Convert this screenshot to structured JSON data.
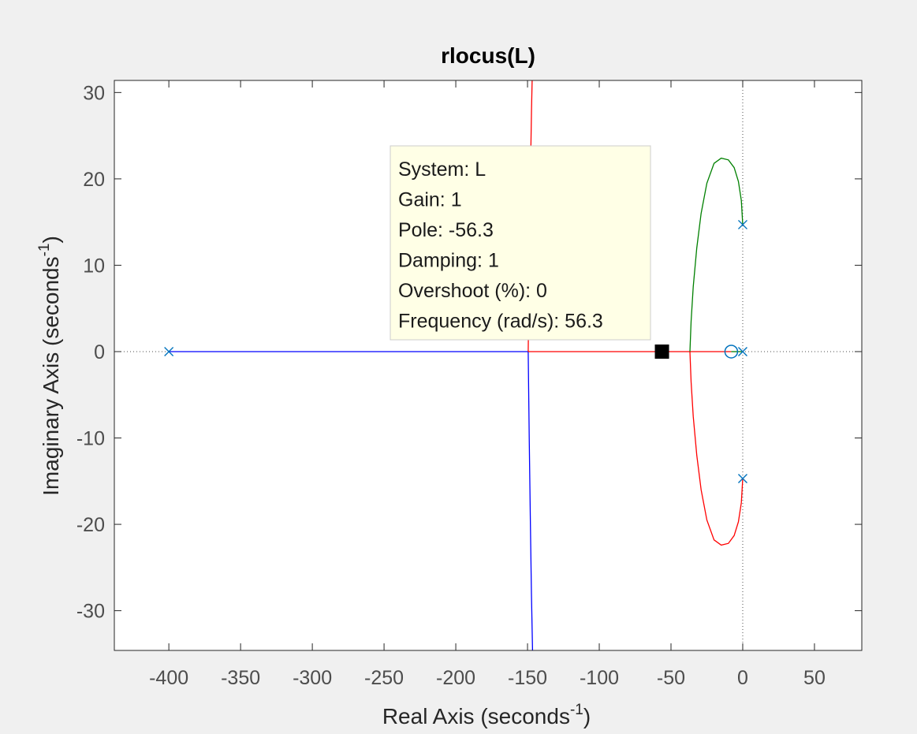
{
  "chart_data": {
    "type": "root-locus",
    "title": "rlocus(L)",
    "xlabel_base": "Real Axis (seconds",
    "xlabel_sup": "-1",
    "xlabel_close": ")",
    "ylabel_base": "Imaginary Axis (seconds",
    "ylabel_sup": "-1",
    "ylabel_close": ")",
    "xlim": [
      -438,
      83
    ],
    "ylim": [
      -34.6,
      31.4
    ],
    "xticks": [
      -400,
      -350,
      -300,
      -250,
      -200,
      -150,
      -100,
      -50,
      0,
      50
    ],
    "yticks": [
      -30,
      -20,
      -10,
      0,
      10,
      20,
      30
    ],
    "grid": false,
    "poles": [
      [
        -400,
        0
      ],
      [
        0,
        0
      ],
      [
        0,
        14.7
      ],
      [
        0,
        -14.7
      ]
    ],
    "zeros": [
      [
        -8,
        0
      ]
    ],
    "marker_color": "#0072bd",
    "series": [
      {
        "color": "#0000ff",
        "points": [
          [
            -400,
            0
          ],
          [
            -149.5,
            0
          ]
        ]
      },
      {
        "color": "#0000ff",
        "points": [
          [
            -149.5,
            0
          ],
          [
            -148.8,
            -10
          ],
          [
            -148,
            -20
          ],
          [
            -147.3,
            -28
          ],
          [
            -146.5,
            -34.6
          ]
        ]
      },
      {
        "color": "#ff0000",
        "points": [
          [
            -8,
            0
          ],
          [
            -149.5,
            0
          ]
        ]
      },
      {
        "color": "#ff0000",
        "points": [
          [
            -149.5,
            0
          ],
          [
            -149,
            8
          ],
          [
            -148.3,
            16
          ],
          [
            -147.8,
            22
          ],
          [
            -147.2,
            28
          ],
          [
            -146.8,
            31.4
          ]
        ]
      },
      {
        "color": "#008000",
        "points": [
          [
            0,
            0
          ],
          [
            -8,
            0
          ]
        ]
      },
      {
        "color": "#008000",
        "points": [
          [
            0,
            14.7
          ],
          [
            -1,
            17.5
          ],
          [
            -3,
            19.7
          ],
          [
            -6,
            21.3
          ],
          [
            -10,
            22.2
          ],
          [
            -15,
            22.4
          ],
          [
            -20,
            21.8
          ],
          [
            -25,
            19.5
          ],
          [
            -29,
            16
          ],
          [
            -32,
            12
          ],
          [
            -34.5,
            7.5
          ],
          [
            -36,
            3.5
          ],
          [
            -36.8,
            0
          ]
        ]
      },
      {
        "color": "#ff0000",
        "points": [
          [
            0,
            -14.7
          ],
          [
            -1,
            -17.5
          ],
          [
            -3,
            -19.7
          ],
          [
            -6,
            -21.3
          ],
          [
            -10,
            -22.2
          ],
          [
            -15,
            -22.4
          ],
          [
            -20,
            -21.8
          ],
          [
            -25,
            -19.5
          ],
          [
            -29,
            -16
          ],
          [
            -32,
            -12
          ],
          [
            -34.5,
            -7.5
          ],
          [
            -36,
            -3.5
          ],
          [
            -36.8,
            0
          ]
        ]
      }
    ],
    "selected_point": [
      -56.3,
      0
    ],
    "datatip": {
      "lines": [
        "System: L",
        "Gain: 1",
        "Pole: -56.3",
        "Damping: 1",
        "Overshoot (%): 0",
        "Frequency (rad/s): 56.3"
      ]
    }
  }
}
